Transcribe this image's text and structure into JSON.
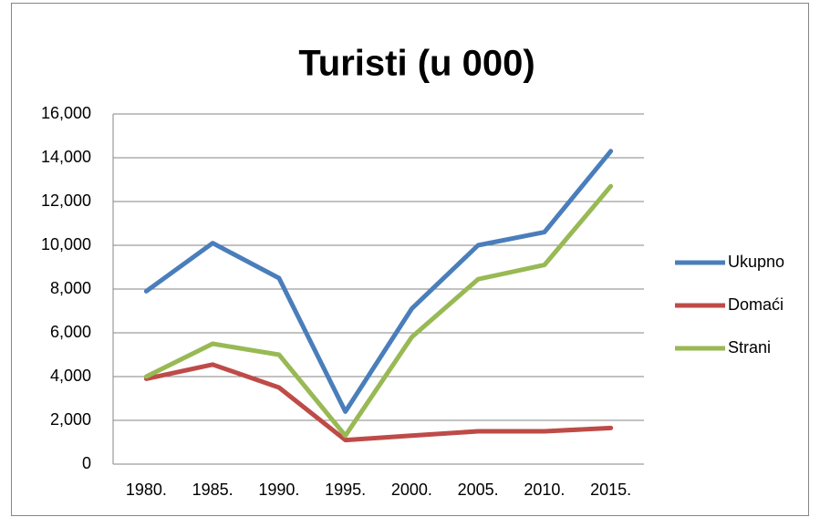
{
  "chart_data": {
    "type": "line",
    "title": "Turisti (u 000)",
    "categories": [
      "1980.",
      "1985.",
      "1990.",
      "1995.",
      "2000.",
      "2005.",
      "2010.",
      "2015."
    ],
    "series": [
      {
        "name": "Ukupno",
        "color": "#4a7ebb",
        "values": [
          7900,
          10100,
          8500,
          2400,
          7100,
          10000,
          10600,
          14300
        ]
      },
      {
        "name": "Domaći",
        "color": "#be4b48",
        "values": [
          3900,
          4550,
          3500,
          1100,
          1300,
          1500,
          1500,
          1650
        ]
      },
      {
        "name": "Strani",
        "color": "#98b954",
        "values": [
          4000,
          5500,
          5000,
          1300,
          5800,
          8450,
          9100,
          12700
        ]
      }
    ],
    "ylim": [
      0,
      16000
    ],
    "yticks": [
      0,
      {
        "value": 2000,
        "label": "2,000"
      },
      {
        "value": 4000,
        "label": "4,000"
      },
      {
        "value": 6000,
        "label": "6,000"
      },
      {
        "value": 8000,
        "label": "8,000"
      },
      {
        "value": 10000,
        "label": "10,000"
      },
      {
        "value": 12000,
        "label": "12,000"
      },
      {
        "value": 14000,
        "label": "14,000"
      },
      {
        "value": 16000,
        "label": "16,000"
      }
    ],
    "grid": true,
    "legend": "right"
  }
}
